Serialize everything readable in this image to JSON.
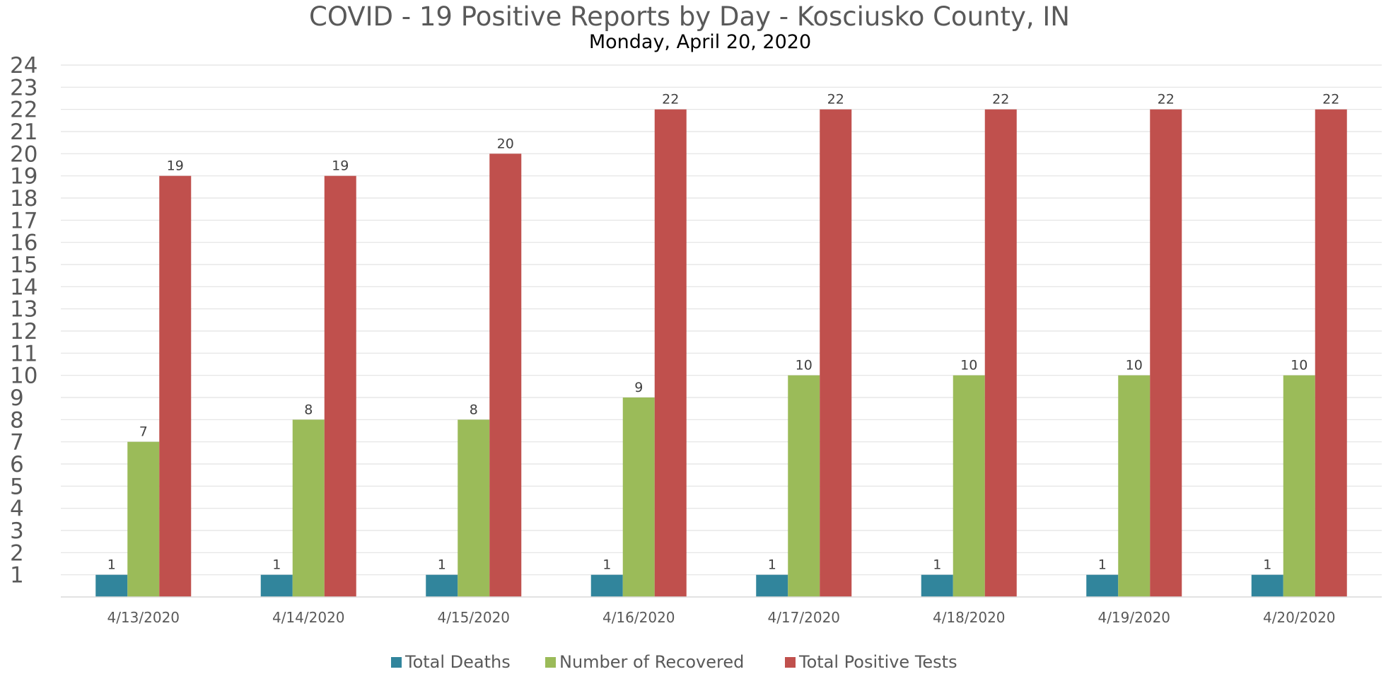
{
  "chart_data": {
    "type": "bar",
    "title": "COVID - 19 Positive Reports by Day - Kosciusko County, IN",
    "subtitle": "Monday, April 20, 2020",
    "categories": [
      "4/13/2020",
      "4/14/2020",
      "4/15/2020",
      "4/16/2020",
      "4/17/2020",
      "4/18/2020",
      "4/19/2020",
      "4/20/2020"
    ],
    "series": [
      {
        "name": "Total Deaths",
        "color": "#31859C",
        "values": [
          1,
          1,
          1,
          1,
          1,
          1,
          1,
          1
        ]
      },
      {
        "name": "Number of Recovered",
        "color": "#9BBB59",
        "values": [
          7,
          8,
          8,
          9,
          10,
          10,
          10,
          10
        ]
      },
      {
        "name": "Total Positive Tests",
        "color": "#C0504D",
        "values": [
          19,
          19,
          20,
          22,
          22,
          22,
          22,
          22
        ]
      }
    ],
    "ylim": [
      0,
      24
    ],
    "yticks": [
      1,
      2,
      3,
      4,
      5,
      6,
      7,
      8,
      9,
      10,
      11,
      12,
      13,
      14,
      15,
      16,
      17,
      18,
      19,
      20,
      21,
      22,
      23,
      24
    ],
    "grid": true,
    "data_labels": true,
    "legend_position": "bottom"
  }
}
